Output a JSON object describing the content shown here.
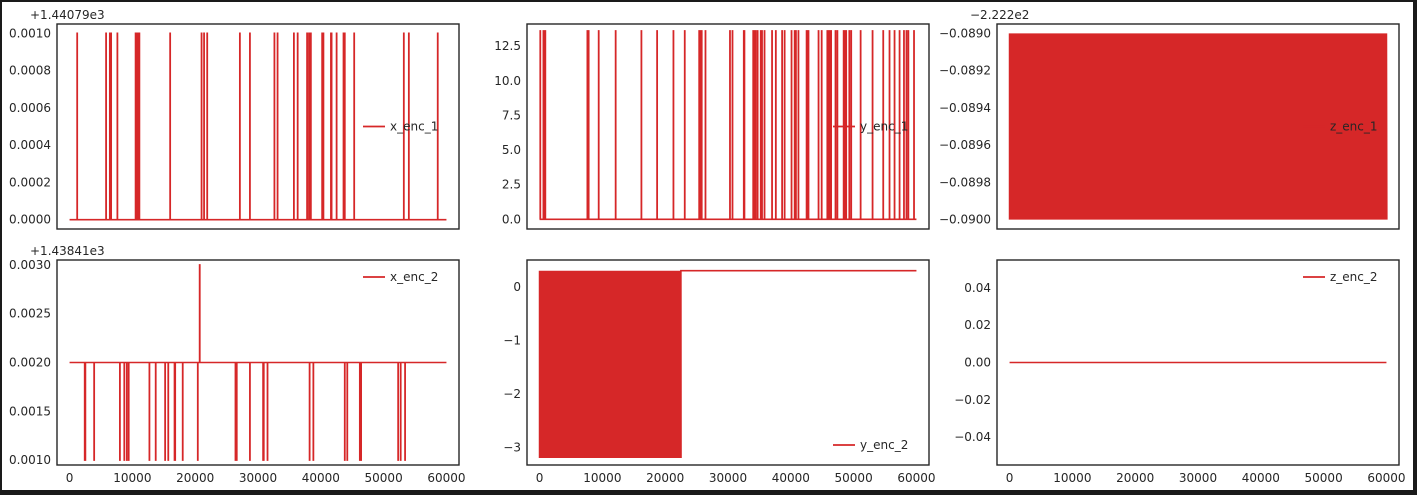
{
  "chart_data": [
    {
      "id": "x_enc_1",
      "type": "line",
      "series": [
        {
          "name": "x_enc_1",
          "color": "#d62728"
        }
      ],
      "offset_label": "+1.44079e3",
      "xlim": [
        -2000,
        62000
      ],
      "ylim": [
        -5e-05,
        0.00105
      ],
      "y_ticks": [
        0.0,
        0.0002,
        0.0004,
        0.0006,
        0.0008,
        0.001
      ],
      "y_tick_labels": [
        "0.0000",
        "0.0002",
        "0.0004",
        "0.0006",
        "0.0008",
        "0.0010"
      ],
      "x_ticks": [],
      "x_tick_labels": [],
      "legend_position": "center-right",
      "signal": {
        "kind": "sparse-spikes",
        "base": 0.0,
        "high": 0.001,
        "x_start": 0,
        "x_end": 60000,
        "density": 0.016,
        "gaps": [
          [
            8200,
            9100
          ],
          [
            14000,
            15500
          ],
          [
            16500,
            17800
          ],
          [
            24500,
            26000
          ],
          [
            29000,
            32500
          ]
        ]
      }
    },
    {
      "id": "y_enc_1",
      "type": "line",
      "series": [
        {
          "name": "y_enc_1",
          "color": "#d62728"
        }
      ],
      "offset_label": "",
      "xlim": [
        -2000,
        62000
      ],
      "ylim": [
        -0.7,
        14.1
      ],
      "y_ticks": [
        0,
        2.5,
        5.0,
        7.5,
        10.0,
        12.5
      ],
      "y_tick_labels": [
        "0.0",
        "2.5",
        "5.0",
        "7.5",
        "10.0",
        "12.5"
      ],
      "x_ticks": [],
      "x_tick_labels": [],
      "legend_position": "center-right",
      "signal": {
        "kind": "sparse-spikes",
        "base": 0.0,
        "high": 13.6,
        "x_start": 0,
        "x_end": 60000,
        "density": 0.04,
        "gaps": [
          [
            1300,
            2100
          ],
          [
            2700,
            3300
          ],
          [
            5400,
            6300
          ],
          [
            8000,
            9100
          ],
          [
            10300,
            11800
          ],
          [
            12500,
            13400
          ],
          [
            14200,
            15200
          ],
          [
            17000,
            18500
          ],
          [
            21500,
            22800
          ],
          [
            24200,
            25200
          ],
          [
            27000,
            28400
          ]
        ]
      }
    },
    {
      "id": "z_enc_1",
      "type": "line",
      "series": [
        {
          "name": "z_enc_1",
          "color": "#d62728"
        }
      ],
      "offset_label": "−2.222e2",
      "xlim": [
        -2000,
        62000
      ],
      "ylim": [
        -0.09005,
        -0.08895
      ],
      "y_ticks": [
        -0.09,
        -0.0898,
        -0.0896,
        -0.0894,
        -0.0892,
        -0.089
      ],
      "y_tick_labels": [
        "−0.0900",
        "−0.0898",
        "−0.0896",
        "−0.0894",
        "−0.0892",
        "−0.0890"
      ],
      "x_ticks": [],
      "x_tick_labels": [],
      "legend_position": "center-right",
      "signal": {
        "kind": "dense-band",
        "low": -0.09,
        "high": -0.089,
        "x_start": 0,
        "x_end": 60000
      }
    },
    {
      "id": "x_enc_2",
      "type": "line",
      "series": [
        {
          "name": "x_enc_2",
          "color": "#d62728"
        }
      ],
      "offset_label": "+1.43841e3",
      "xlim": [
        -2000,
        62000
      ],
      "ylim": [
        0.00095,
        0.00305
      ],
      "y_ticks": [
        0.001,
        0.0015,
        0.002,
        0.0025,
        0.003
      ],
      "y_tick_labels": [
        "0.0010",
        "0.0015",
        "0.0020",
        "0.0025",
        "0.0030"
      ],
      "x_ticks": [
        0,
        10000,
        20000,
        30000,
        40000,
        50000,
        60000
      ],
      "x_tick_labels": [
        "0",
        "10000",
        "20000",
        "30000",
        "40000",
        "50000",
        "60000"
      ],
      "legend_position": "upper-right",
      "signal": {
        "kind": "sparse-dips",
        "base": 0.002,
        "low": 0.001,
        "x_start": 0,
        "x_end": 60000,
        "density": 0.018,
        "gaps": [
          [
            21000,
            26000
          ],
          [
            35000,
            37500
          ],
          [
            39000,
            43500
          ],
          [
            49000,
            52000
          ],
          [
            53500,
            60000
          ]
        ],
        "peak": {
          "x": 20700,
          "y": 0.003
        }
      }
    },
    {
      "id": "y_enc_2",
      "type": "line",
      "series": [
        {
          "name": "y_enc_2",
          "color": "#d62728"
        }
      ],
      "offset_label": "",
      "xlim": [
        -2000,
        62000
      ],
      "ylim": [
        -3.33,
        0.5
      ],
      "y_ticks": [
        -3,
        -2,
        -1,
        0
      ],
      "y_tick_labels": [
        "−3",
        "−2",
        "−1",
        "0"
      ],
      "x_ticks": [
        0,
        10000,
        20000,
        30000,
        40000,
        50000,
        60000
      ],
      "x_tick_labels": [
        "0",
        "10000",
        "20000",
        "30000",
        "40000",
        "50000",
        "60000"
      ],
      "legend_position": "lower-right",
      "signal": {
        "kind": "band-then-flat",
        "low": -3.2,
        "high": 0.3,
        "band_end": 22500,
        "flat_value": 0.3,
        "x_start": 0,
        "x_end": 60000
      }
    },
    {
      "id": "z_enc_2",
      "type": "line",
      "series": [
        {
          "name": "z_enc_2",
          "color": "#d62728"
        }
      ],
      "offset_label": "",
      "xlim": [
        -2000,
        62000
      ],
      "ylim": [
        -0.055,
        0.055
      ],
      "y_ticks": [
        -0.04,
        -0.02,
        0.0,
        0.02,
        0.04
      ],
      "y_tick_labels": [
        "−0.04",
        "−0.02",
        "0.00",
        "0.02",
        "0.04"
      ],
      "x_ticks": [
        0,
        10000,
        20000,
        30000,
        40000,
        50000,
        60000
      ],
      "x_tick_labels": [
        "0",
        "10000",
        "20000",
        "30000",
        "40000",
        "50000",
        "60000"
      ],
      "legend_position": "upper-right",
      "signal": {
        "kind": "flat",
        "value": 0.0,
        "x_start": 0,
        "x_end": 60000
      }
    }
  ]
}
